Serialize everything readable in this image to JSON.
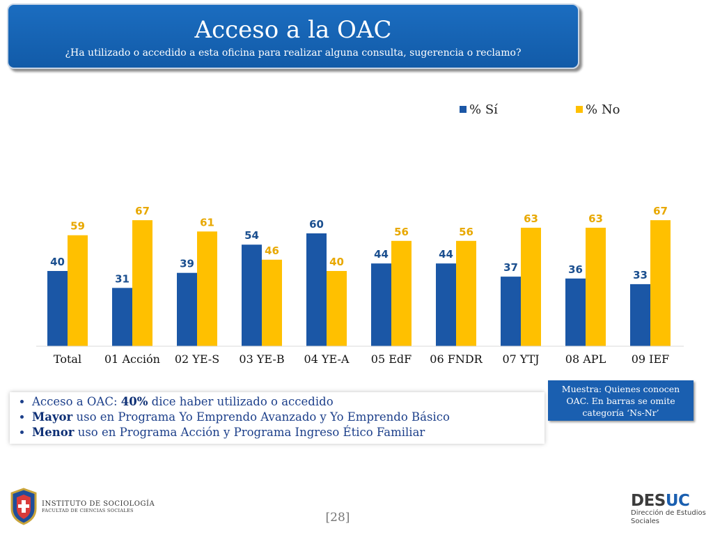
{
  "header": {
    "title": "Acceso a la OAC",
    "subtitle": "¿Ha utilizado o accedido a esta oficina para realizar alguna consulta, sugerencia o reclamo?"
  },
  "colors": {
    "si": "#1b57a6",
    "no": "#ffc000",
    "si_label": "#1b4f8f",
    "no_label": "#e8a800"
  },
  "chart_data": {
    "type": "bar",
    "categories": [
      "Total",
      "01 Acción",
      "02 YE-S",
      "03 YE-B",
      "04 YE-A",
      "05 EdF",
      "06 FNDR",
      "07 YTJ",
      "08 APL",
      "09 IEF"
    ],
    "series": [
      {
        "name": "% Sí",
        "values": [
          40,
          31,
          39,
          54,
          60,
          44,
          44,
          37,
          36,
          33
        ]
      },
      {
        "name": "% No",
        "values": [
          59,
          67,
          61,
          46,
          40,
          56,
          56,
          63,
          63,
          67
        ]
      }
    ],
    "title": "",
    "xlabel": "",
    "ylabel": "",
    "ylim": [
      0,
      80
    ],
    "legend": "top-right",
    "grid": false
  },
  "bullets": [
    {
      "pre": "Acceso a OAC: ",
      "bold": "40%",
      "post": " dice haber utilizado o accedido"
    },
    {
      "pre": "",
      "bold": "Mayor",
      "post": " uso en Programa Yo Emprendo Avanzado y Yo Emprendo Básico"
    },
    {
      "pre": "",
      "bold": "Menor",
      "post": " uso en Programa Acción y Programa Ingreso Ético Familiar"
    }
  ],
  "note": "Muestra: Quienes conocen OAC. En barras se omite categoría ‘Ns-Nr’",
  "page_number": "[28]",
  "logo_left": {
    "line1": "INSTITUTO DE SOCIOLOGÍA",
    "line2": "FACULTAD DE CIENCIAS SOCIALES"
  },
  "logo_right": {
    "brand_a": "DES",
    "brand_b": "UC",
    "sub1": "Dirección de Estudios",
    "sub2": "Sociales"
  }
}
